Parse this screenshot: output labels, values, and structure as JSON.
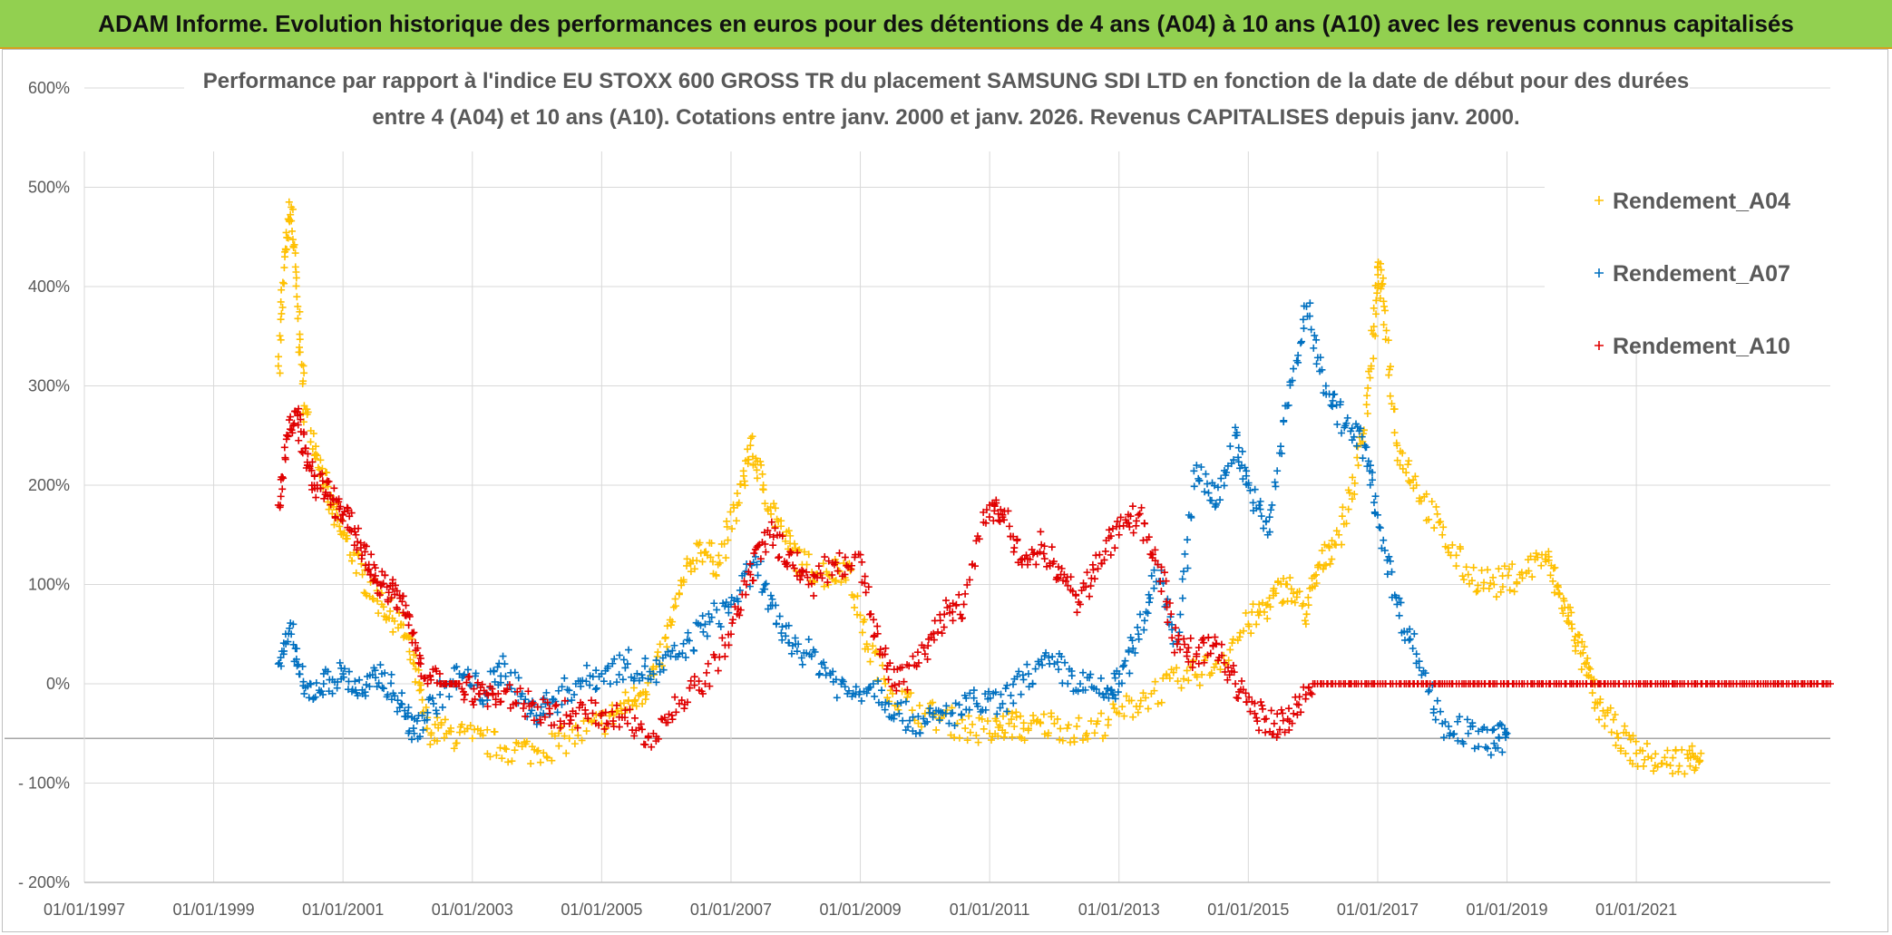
{
  "banner": {
    "title": "ADAM Informe. Evolution historique des performances en euros pour des détentions de 4 ans (A04) à 10 ans (A10) avec les revenus connus capitalisés"
  },
  "colors": {
    "banner_bg": "#92d050",
    "A04": "#ffc000",
    "A07": "#0070c0",
    "A10": "#e00000",
    "grid": "#d9d9d9",
    "text": "#595959"
  },
  "chart_data": {
    "type": "scatter",
    "title_line1": "Performance par rapport à l'indice EU STOXX 600 GROSS TR  du placement SAMSUNG SDI LTD en fonction de la date de début pour des durées",
    "title_line2": "entre 4 (A04) et 10 ans (A10). Cotations entre janv. 2000 et janv. 2026. Revenus CAPITALISES depuis janv. 2000.",
    "xlabel": "",
    "ylabel": "",
    "xlim": [
      1997.0,
      2024.0
    ],
    "ylim": [
      -200,
      600
    ],
    "yticks": [
      600,
      500,
      400,
      300,
      200,
      100,
      0,
      -100,
      -200
    ],
    "ytick_labels": [
      "600%",
      "500%",
      "400%",
      "300%",
      "200%",
      "100%",
      "0%",
      "- 100%",
      "- 200%"
    ],
    "xticks": [
      1997,
      1999,
      2001,
      2003,
      2005,
      2007,
      2009,
      2011,
      2013,
      2015,
      2017,
      2019,
      2021
    ],
    "xtick_labels": [
      "01/01/1997",
      "01/01/1999",
      "01/01/2001",
      "01/01/2003",
      "01/01/2005",
      "01/01/2007",
      "01/01/2009",
      "01/01/2011",
      "01/01/2013",
      "01/01/2015",
      "01/01/2017",
      "01/01/2019",
      "01/01/2021"
    ],
    "legend_position": "top-right",
    "series": [
      {
        "name": "Rendement_A04",
        "color": "#ffc000",
        "x": [
          2000.0,
          2000.1,
          2000.2,
          2000.3,
          2000.4,
          2000.6,
          2000.8,
          2001.0,
          2001.3,
          2001.6,
          2001.9,
          2002.1,
          2002.3,
          2002.6,
          2003.0,
          2003.5,
          2004.0,
          2004.5,
          2005.0,
          2005.3,
          2005.6,
          2005.9,
          2006.2,
          2006.5,
          2006.8,
          2007.1,
          2007.3,
          2007.5,
          2007.8,
          2008.1,
          2008.5,
          2008.8,
          2009.1,
          2009.5,
          2010.0,
          2010.5,
          2011.0,
          2011.3,
          2011.6,
          2012.0,
          2012.5,
          2013.0,
          2013.5,
          2014.0,
          2014.5,
          2015.0,
          2015.3,
          2015.6,
          2015.9,
          2016.1,
          2016.4,
          2016.7,
          2016.9,
          2017.0,
          2017.1,
          2017.3,
          2017.6,
          2018.0,
          2018.4,
          2018.8,
          2019.2,
          2019.6,
          2019.8,
          2020.0,
          2020.2,
          2020.4,
          2020.7,
          2021.0,
          2021.4,
          2021.8,
          2022.0
        ],
        "y": [
          320,
          430,
          480,
          380,
          280,
          230,
          180,
          150,
          110,
          80,
          60,
          20,
          -45,
          -50,
          -55,
          -65,
          -68,
          -55,
          -40,
          -25,
          -10,
          20,
          90,
          140,
          120,
          180,
          240,
          200,
          150,
          120,
          110,
          120,
          40,
          -10,
          -30,
          -40,
          -50,
          -40,
          -45,
          -40,
          -50,
          -30,
          -10,
          5,
          20,
          60,
          80,
          100,
          70,
          120,
          150,
          220,
          320,
          420,
          380,
          240,
          200,
          150,
          110,
          100,
          110,
          130,
          90,
          60,
          20,
          -20,
          -50,
          -70,
          -80,
          -75,
          -70
        ]
      },
      {
        "name": "Rendement_A07",
        "color": "#0070c0",
        "x": [
          2000.0,
          2000.2,
          2000.4,
          2000.7,
          2001.0,
          2001.3,
          2001.6,
          2001.9,
          2002.1,
          2002.4,
          2002.8,
          2003.2,
          2003.5,
          2003.9,
          2004.2,
          2004.6,
          2005.0,
          2005.4,
          2005.8,
          2006.2,
          2006.6,
          2007.0,
          2007.4,
          2007.7,
          2008.0,
          2008.4,
          2008.8,
          2009.2,
          2009.6,
          2010.0,
          2010.4,
          2010.8,
          2011.2,
          2011.6,
          2012.0,
          2012.4,
          2012.8,
          2013.0,
          2013.3,
          2013.6,
          2013.9,
          2014.2,
          2014.5,
          2014.8,
          2015.0,
          2015.3,
          2015.6,
          2015.9,
          2016.2,
          2016.5,
          2016.8,
          2017.0,
          2017.3,
          2017.6,
          2018.0,
          2018.4,
          2018.8,
          2019.0
        ],
        "y": [
          20,
          50,
          -10,
          0,
          10,
          -10,
          10,
          -20,
          -50,
          -20,
          10,
          -10,
          20,
          -30,
          -20,
          0,
          10,
          20,
          10,
          30,
          60,
          80,
          120,
          60,
          40,
          20,
          -10,
          0,
          -30,
          -40,
          -30,
          -20,
          -20,
          10,
          20,
          0,
          -10,
          0,
          50,
          120,
          40,
          220,
          180,
          250,
          200,
          150,
          280,
          380,
          300,
          260,
          240,
          170,
          80,
          30,
          -40,
          -50,
          -60,
          -50
        ]
      },
      {
        "name": "Rendement_A10",
        "color": "#e00000",
        "x": [
          2000.0,
          2000.15,
          2000.3,
          2000.45,
          2000.6,
          2000.8,
          2001.0,
          2001.2,
          2001.4,
          2001.6,
          2001.8,
          2002.0,
          2002.2,
          2002.5,
          2002.8,
          2003.1,
          2003.4,
          2003.8,
          2004.2,
          2004.6,
          2005.0,
          2005.4,
          2005.8,
          2006.2,
          2006.6,
          2007.0,
          2007.3,
          2007.6,
          2007.9,
          2008.2,
          2008.6,
          2009.0,
          2009.3,
          2009.6,
          2010.0,
          2010.3,
          2010.6,
          2011.0,
          2011.2,
          2011.5,
          2011.8,
          2012.1,
          2012.4,
          2012.7,
          2013.0,
          2013.3,
          2013.6,
          2013.9,
          2014.2,
          2014.5,
          2014.8,
          2015.1,
          2015.4,
          2015.7,
          2016.0,
          2016.5,
          2017.0,
          2017.5,
          2018.0,
          2018.5,
          2019.0,
          2019.5,
          2020.0,
          2020.5,
          2021.0,
          2021.5,
          2022.0,
          2022.5,
          2023.0,
          2023.5,
          2024.0
        ],
        "y": [
          180,
          250,
          270,
          220,
          200,
          190,
          170,
          150,
          120,
          100,
          90,
          70,
          20,
          0,
          0,
          -10,
          -10,
          -20,
          -30,
          -30,
          -30,
          -40,
          -50,
          -20,
          0,
          50,
          110,
          150,
          130,
          100,
          120,
          130,
          30,
          0,
          30,
          70,
          80,
          180,
          170,
          120,
          140,
          110,
          80,
          130,
          150,
          170,
          120,
          40,
          30,
          40,
          0,
          -30,
          -40,
          -30,
          0,
          0,
          0,
          0,
          0,
          0,
          0,
          0,
          0,
          0,
          0,
          0,
          0,
          0,
          0,
          0,
          0
        ]
      }
    ]
  }
}
